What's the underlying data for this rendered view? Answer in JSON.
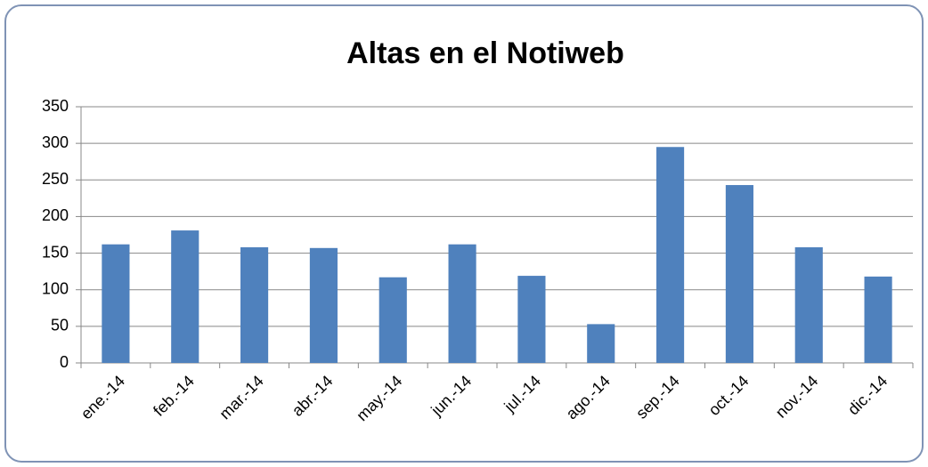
{
  "chart_data": {
    "type": "bar",
    "title": "Altas en el Notiweb",
    "categories": [
      "ene.-14",
      "feb.-14",
      "mar.-14",
      "abr.-14",
      "may.-14",
      "jun.-14",
      "jul.-14",
      "ago.-14",
      "sep.-14",
      "oct.-14",
      "nov.-14",
      "dic.-14"
    ],
    "values": [
      162,
      181,
      158,
      157,
      117,
      162,
      119,
      53,
      295,
      243,
      158,
      118
    ],
    "color": "#4f81bd",
    "ylim": [
      0,
      350
    ],
    "yticks": [
      0,
      50,
      100,
      150,
      200,
      250,
      300,
      350
    ],
    "grid": true
  }
}
